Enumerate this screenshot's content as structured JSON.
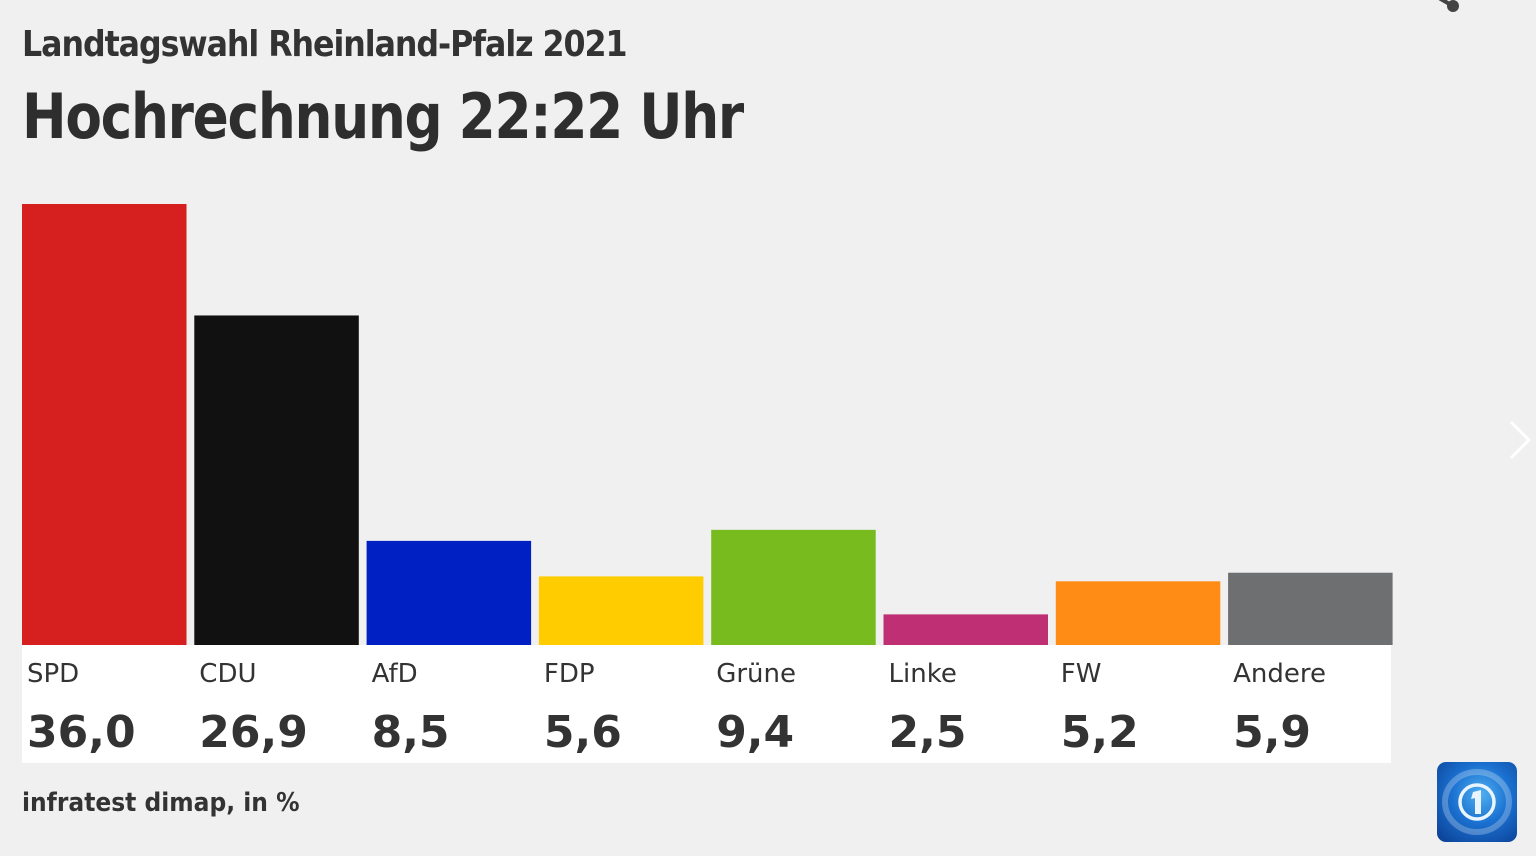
{
  "header": {
    "subtitle": "Landtagswahl Rheinland-Pfalz 2021",
    "title": "Hochrechnung 22:22 Uhr"
  },
  "footer": {
    "source": "infratest dimap, in %"
  },
  "icons": {
    "share": "share-icon",
    "next": "chevron-right-icon",
    "logo": "ard-tagesschau-logo-icon"
  },
  "chart_data": {
    "type": "bar",
    "title": "Hochrechnung 22:22 Uhr",
    "subtitle": "Landtagswahl Rheinland-Pfalz 2021",
    "xlabel": "",
    "ylabel": "in %",
    "ylim": [
      0,
      36
    ],
    "grid": false,
    "categories": [
      "SPD",
      "CDU",
      "AfD",
      "FDP",
      "Grüne",
      "Linke",
      "FW",
      "Andere"
    ],
    "values": [
      36.0,
      26.9,
      8.5,
      5.6,
      9.4,
      2.5,
      5.2,
      5.9
    ],
    "value_labels": [
      "36,0",
      "26,9",
      "8,5",
      "5,6",
      "9,4",
      "2,5",
      "5,2",
      "5,9"
    ],
    "colors": [
      "#d61f1f",
      "#111111",
      "#0020c4",
      "#ffcc00",
      "#78bb1e",
      "#be2f74",
      "#ff8c14",
      "#6e6f70"
    ],
    "source": "infratest dimap, in %"
  }
}
